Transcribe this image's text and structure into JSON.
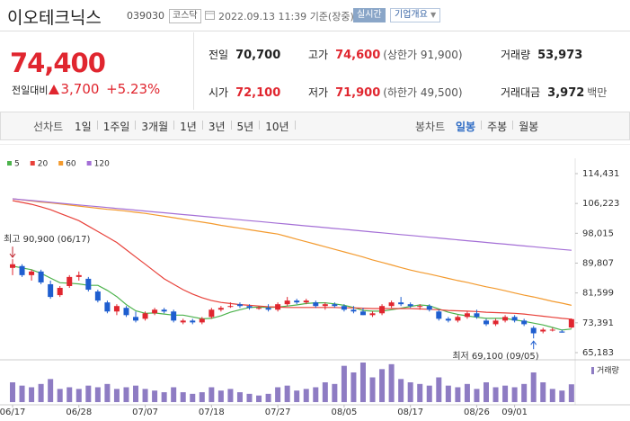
{
  "header": {
    "name": "이오테크닉스",
    "code": "039030",
    "market": "코스닥",
    "datetime": "2022.09.13 11:39",
    "basis": "기준(장중)",
    "realtime_button": "실시간",
    "overview_button": "기업개요"
  },
  "quote": {
    "price": "74,400",
    "change_label": "전일대비",
    "change": "3,700",
    "change_pct": "+5.23%",
    "items": [
      {
        "label": "전일",
        "value": "70,700",
        "color": "#222222"
      },
      {
        "label": "고가",
        "value": "74,600",
        "note": "(상한가 91,900)",
        "color": "#e0262f"
      },
      {
        "label": "거래량",
        "value": "53,973",
        "color": "#222222"
      },
      {
        "label": "시가",
        "value": "72,100",
        "color": "#e0262f"
      },
      {
        "label": "저가",
        "value": "71,900",
        "note": "(하한가 49,500)",
        "color": "#e0262f"
      },
      {
        "label": "거래대금",
        "value": "3,972",
        "note": "백만",
        "color": "#222222"
      }
    ]
  },
  "tabs": {
    "line_label": "선차트",
    "line": [
      "1일",
      "1주일",
      "3개월",
      "1년",
      "3년",
      "5년",
      "10년"
    ],
    "candle_label": "봉차트",
    "candle": [
      "일봉",
      "주봉",
      "월봉"
    ],
    "active": "일봉"
  },
  "chart_data": {
    "type": "candlestick",
    "categories": [
      "06/17",
      null,
      null,
      null,
      null,
      null,
      null,
      "06/28",
      null,
      null,
      null,
      null,
      null,
      null,
      "07/07",
      null,
      null,
      null,
      null,
      null,
      null,
      "07/18",
      null,
      null,
      null,
      null,
      null,
      null,
      "07/27",
      null,
      null,
      null,
      null,
      null,
      null,
      "08/05",
      null,
      null,
      null,
      null,
      null,
      null,
      "08/17",
      null,
      null,
      null,
      null,
      null,
      null,
      "08/26",
      null,
      null,
      null,
      "09/01",
      null,
      null,
      null,
      null,
      null,
      null
    ],
    "open": [
      88500,
      89000,
      86500,
      87500,
      84000,
      81000,
      83500,
      86000,
      85500,
      82000,
      79000,
      76500,
      77500,
      75000,
      74500,
      76000,
      77000,
      76500,
      73500,
      74000,
      73500,
      75000,
      77000,
      78000,
      78500,
      78000,
      77500,
      77500,
      77000,
      78500,
      79500,
      79000,
      79000,
      78000,
      78500,
      78000,
      77000,
      76500,
      75500,
      76000,
      78000,
      79000,
      78500,
      78000,
      78000,
      76500,
      74500,
      74000,
      75000,
      76000,
      74000,
      73000,
      74000,
      75000,
      74000,
      72000,
      71000,
      71500,
      71000,
      72100
    ],
    "high": [
      90900,
      89500,
      88000,
      88000,
      85000,
      83500,
      86500,
      87500,
      86000,
      82500,
      79500,
      78500,
      78000,
      76500,
      76500,
      77500,
      77500,
      77000,
      74500,
      74500,
      75000,
      77500,
      78000,
      79000,
      79000,
      78500,
      78000,
      78500,
      79000,
      80500,
      80000,
      80000,
      79500,
      79000,
      79000,
      78500,
      78000,
      77500,
      76500,
      78500,
      79500,
      80500,
      79000,
      78500,
      78500,
      77000,
      75000,
      75500,
      76500,
      77000,
      74500,
      74500,
      75500,
      75500,
      74500,
      72500,
      72000,
      72000,
      71500,
      74600
    ],
    "low": [
      86500,
      86000,
      85000,
      84000,
      80000,
      80500,
      83000,
      85000,
      82000,
      79000,
      76000,
      75500,
      75000,
      73500,
      74000,
      75500,
      76000,
      73500,
      73000,
      73000,
      73000,
      74500,
      76500,
      77500,
      77500,
      77000,
      77000,
      76500,
      76500,
      78000,
      78500,
      78500,
      77500,
      77000,
      77500,
      76500,
      76000,
      75500,
      75000,
      75500,
      77500,
      78000,
      77500,
      77000,
      76500,
      74000,
      73500,
      73500,
      74500,
      74500,
      72500,
      72500,
      73500,
      73500,
      72500,
      69100,
      70500,
      71000,
      70700,
      71900
    ],
    "close": [
      89500,
      86500,
      87500,
      84500,
      80500,
      83000,
      86000,
      86500,
      82500,
      79500,
      76500,
      78000,
      75500,
      74000,
      76000,
      77000,
      76500,
      74000,
      74000,
      73500,
      74500,
      77000,
      77500,
      78000,
      78000,
      77500,
      77500,
      77000,
      78500,
      79500,
      79000,
      79500,
      78000,
      78500,
      78000,
      77000,
      76500,
      75500,
      76000,
      78000,
      79000,
      78500,
      78000,
      78000,
      77000,
      74500,
      74000,
      75000,
      76000,
      75000,
      73000,
      74000,
      75000,
      74000,
      73000,
      70500,
      71500,
      71500,
      70700,
      74400
    ],
    "up_color": "#e0262f",
    "down_color": "#1e5ecf",
    "ylim": [
      65183,
      114431
    ],
    "yticks": [
      {
        "value": 65183,
        "label": "65,183"
      },
      {
        "value": 73391,
        "label": "73,391"
      },
      {
        "value": 81599,
        "label": "81,599"
      },
      {
        "value": 89807,
        "label": "89,807"
      },
      {
        "value": 98015,
        "label": "98,015"
      },
      {
        "value": 106223,
        "label": "106,223"
      },
      {
        "value": 114431,
        "label": "114,431"
      }
    ],
    "moving_averages": [
      {
        "name": "5",
        "color": "#4db34d",
        "values": [
          89000,
          88500,
          88000,
          87000,
          85700,
          84400,
          84300,
          84100,
          83700,
          83700,
          82300,
          80600,
          78400,
          76700,
          76000,
          76100,
          75800,
          75500,
          75500,
          75000,
          74500,
          74600,
          75300,
          76300,
          77000,
          77600,
          77700,
          77600,
          77700,
          78000,
          78300,
          78700,
          78900,
          78900,
          78600,
          78200,
          77600,
          76800,
          76600,
          76600,
          77000,
          77400,
          77900,
          78300,
          78100,
          77200,
          76300,
          75700,
          75300,
          74900,
          74600,
          74600,
          74600,
          74200,
          73800,
          73300,
          72800,
          72100,
          71400,
          71700
        ]
      },
      {
        "name": "20",
        "color": "#e8413a",
        "values": [
          107000,
          106500,
          106000,
          105300,
          104500,
          103500,
          102500,
          101500,
          100000,
          98500,
          97000,
          95500,
          93500,
          91500,
          89500,
          87500,
          85500,
          84000,
          82500,
          81300,
          80300,
          79500,
          79000,
          78700,
          78400,
          78200,
          78000,
          77800,
          77700,
          77600,
          77600,
          77600,
          77600,
          77600,
          77600,
          77500,
          77500,
          77400,
          77300,
          77300,
          77300,
          77300,
          77300,
          77200,
          77100,
          77000,
          76800,
          76700,
          76600,
          76500,
          76300,
          76200,
          76100,
          76000,
          75800,
          75500,
          75200,
          74900,
          74600,
          74400
        ]
      },
      {
        "name": "60",
        "color": "#f39a2e",
        "values": [
          107500,
          107200,
          106900,
          106600,
          106400,
          106100,
          105800,
          105500,
          105200,
          104900,
          104600,
          104400,
          104100,
          103800,
          103500,
          103100,
          102700,
          102300,
          101900,
          101500,
          101100,
          100700,
          100200,
          99800,
          99400,
          99000,
          98600,
          98200,
          97800,
          97100,
          96400,
          95700,
          95000,
          94300,
          93600,
          92900,
          92200,
          91500,
          90700,
          90000,
          89300,
          88600,
          87900,
          87300,
          86800,
          86200,
          85600,
          85000,
          84500,
          83900,
          83300,
          82800,
          82200,
          81600,
          81000,
          80500,
          79900,
          79300,
          78800,
          78200
        ]
      },
      {
        "name": "120",
        "color": "#a46fd6",
        "values": [
          107500,
          107260,
          107020,
          106780,
          106540,
          106300,
          106060,
          105820,
          105580,
          105340,
          105100,
          104860,
          104620,
          104380,
          104140,
          103900,
          103660,
          103420,
          103180,
          102940,
          102700,
          102460,
          102220,
          101980,
          101740,
          101500,
          101260,
          101020,
          100780,
          100540,
          100300,
          100060,
          99820,
          99580,
          99340,
          99100,
          98860,
          98620,
          98380,
          98140,
          97900,
          97660,
          97420,
          97180,
          96940,
          96700,
          96460,
          96220,
          95980,
          95740,
          95500,
          95260,
          95020,
          94780,
          94540,
          94300,
          94060,
          93820,
          93580,
          93340
        ]
      }
    ],
    "volume": {
      "name": "거래량",
      "color": "#8e7cc3",
      "values": [
        60000,
        50000,
        45000,
        55000,
        70000,
        40000,
        45000,
        40000,
        50000,
        45000,
        55000,
        40000,
        45000,
        50000,
        40000,
        35000,
        30000,
        45000,
        30000,
        25000,
        30000,
        45000,
        35000,
        40000,
        30000,
        25000,
        20000,
        25000,
        45000,
        50000,
        35000,
        40000,
        45000,
        60000,
        55000,
        110000,
        90000,
        120000,
        75000,
        100000,
        115000,
        70000,
        60000,
        55000,
        50000,
        75000,
        50000,
        45000,
        55000,
        40000,
        60000,
        45000,
        50000,
        45000,
        55000,
        90000,
        60000,
        40000,
        35000,
        53973
      ]
    },
    "annotations": [
      {
        "text": "최고 90,900 (06/17)",
        "color": "#c0262f"
      },
      {
        "text": "최저 69,100 (09/05)",
        "color": "#1e5ecf"
      }
    ]
  }
}
